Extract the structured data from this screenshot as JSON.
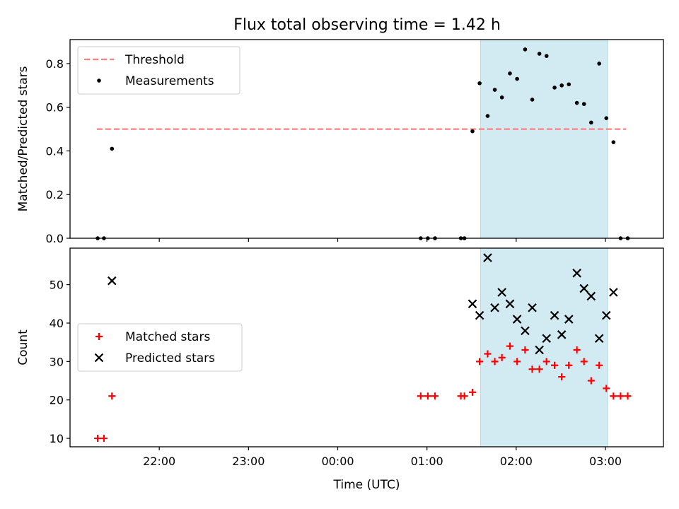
{
  "title": "Flux total observing time = 1.42 h",
  "colors": {
    "threshold": "#ff7f7f",
    "measurement": "#000000",
    "matched": "#ff0000",
    "predicted": "#000000",
    "span": "#add8e6"
  },
  "chart_data": [
    {
      "type": "scatter",
      "title": "Flux total observing time = 1.42 h",
      "ylabel": "Matched/Predicted stars",
      "xlabel": "",
      "x_unit": "hours (UTC, continuing past midnight)",
      "xlim": [
        21.0,
        27.65
      ],
      "ylim": [
        0.0,
        0.91
      ],
      "yticks": [
        "0.0",
        "0.2",
        "0.4",
        "0.6",
        "0.8"
      ],
      "legend": {
        "position": "upper-left",
        "entries": [
          "Threshold",
          "Measurements"
        ]
      },
      "highlight_span": [
        25.6,
        27.02
      ],
      "threshold": {
        "name": "Threshold",
        "y": 0.5,
        "x_range": [
          21.3,
          27.23
        ],
        "style": "dashed"
      },
      "series": [
        {
          "name": "Measurements",
          "marker": "dot",
          "points": [
            [
              21.31,
              0.0
            ],
            [
              21.38,
              0.0
            ],
            [
              21.47,
              0.41
            ],
            [
              24.93,
              0.0
            ],
            [
              25.01,
              0.0
            ],
            [
              25.09,
              0.0
            ],
            [
              25.38,
              0.0
            ],
            [
              25.42,
              0.0
            ],
            [
              25.51,
              0.49
            ],
            [
              25.59,
              0.71
            ],
            [
              25.68,
              0.56
            ],
            [
              25.76,
              0.68
            ],
            [
              25.84,
              0.645
            ],
            [
              25.93,
              0.755
            ],
            [
              26.01,
              0.73
            ],
            [
              26.1,
              0.865
            ],
            [
              26.18,
              0.635
            ],
            [
              26.26,
              0.845
            ],
            [
              26.34,
              0.835
            ],
            [
              26.43,
              0.69
            ],
            [
              26.51,
              0.7
            ],
            [
              26.59,
              0.705
            ],
            [
              26.68,
              0.62
            ],
            [
              26.76,
              0.615
            ],
            [
              26.84,
              0.53
            ],
            [
              26.93,
              0.8
            ],
            [
              27.01,
              0.55
            ],
            [
              27.09,
              0.44
            ],
            [
              27.17,
              0.0
            ],
            [
              27.25,
              0.0
            ]
          ]
        }
      ]
    },
    {
      "type": "scatter",
      "title": "",
      "ylabel": "Count",
      "xlabel": "Time (UTC)",
      "x_unit": "hours (UTC, continuing past midnight)",
      "xlim": [
        21.0,
        27.65
      ],
      "ylim": [
        7.8,
        59.5
      ],
      "yticks": [
        "10",
        "20",
        "30",
        "40",
        "50"
      ],
      "xticks": [
        {
          "x": 22,
          "label": "22:00"
        },
        {
          "x": 23,
          "label": "23:00"
        },
        {
          "x": 24,
          "label": "00:00"
        },
        {
          "x": 25,
          "label": "01:00"
        },
        {
          "x": 26,
          "label": "02:00"
        },
        {
          "x": 27,
          "label": "03:00"
        }
      ],
      "legend": {
        "position": "center-left",
        "entries": [
          "Matched stars",
          "Predicted stars"
        ]
      },
      "highlight_span": [
        25.6,
        27.02
      ],
      "series": [
        {
          "name": "Matched stars",
          "marker": "plus",
          "points": [
            [
              21.31,
              10
            ],
            [
              21.38,
              10
            ],
            [
              21.47,
              21
            ],
            [
              24.93,
              21
            ],
            [
              25.01,
              21
            ],
            [
              25.09,
              21
            ],
            [
              25.38,
              21
            ],
            [
              25.42,
              21
            ],
            [
              25.51,
              22
            ],
            [
              25.59,
              30
            ],
            [
              25.68,
              32
            ],
            [
              25.76,
              30
            ],
            [
              25.84,
              31
            ],
            [
              25.93,
              34
            ],
            [
              26.01,
              30
            ],
            [
              26.1,
              33
            ],
            [
              26.18,
              28
            ],
            [
              26.26,
              28
            ],
            [
              26.34,
              30
            ],
            [
              26.43,
              29
            ],
            [
              26.51,
              26
            ],
            [
              26.59,
              29
            ],
            [
              26.68,
              33
            ],
            [
              26.76,
              30
            ],
            [
              26.84,
              25
            ],
            [
              26.93,
              29
            ],
            [
              27.01,
              23
            ],
            [
              27.09,
              21
            ],
            [
              27.17,
              21
            ],
            [
              27.25,
              21
            ]
          ]
        },
        {
          "name": "Predicted stars",
          "marker": "x",
          "points": [
            [
              21.47,
              51
            ],
            [
              25.51,
              45
            ],
            [
              25.59,
              42
            ],
            [
              25.68,
              57
            ],
            [
              25.76,
              44
            ],
            [
              25.84,
              48
            ],
            [
              25.93,
              45
            ],
            [
              26.01,
              41
            ],
            [
              26.1,
              38
            ],
            [
              26.18,
              44
            ],
            [
              26.26,
              33
            ],
            [
              26.34,
              36
            ],
            [
              26.43,
              42
            ],
            [
              26.51,
              37
            ],
            [
              26.59,
              41
            ],
            [
              26.68,
              53
            ],
            [
              26.76,
              49
            ],
            [
              26.84,
              47
            ],
            [
              26.93,
              36
            ],
            [
              27.01,
              42
            ],
            [
              27.09,
              48
            ]
          ]
        }
      ]
    }
  ]
}
